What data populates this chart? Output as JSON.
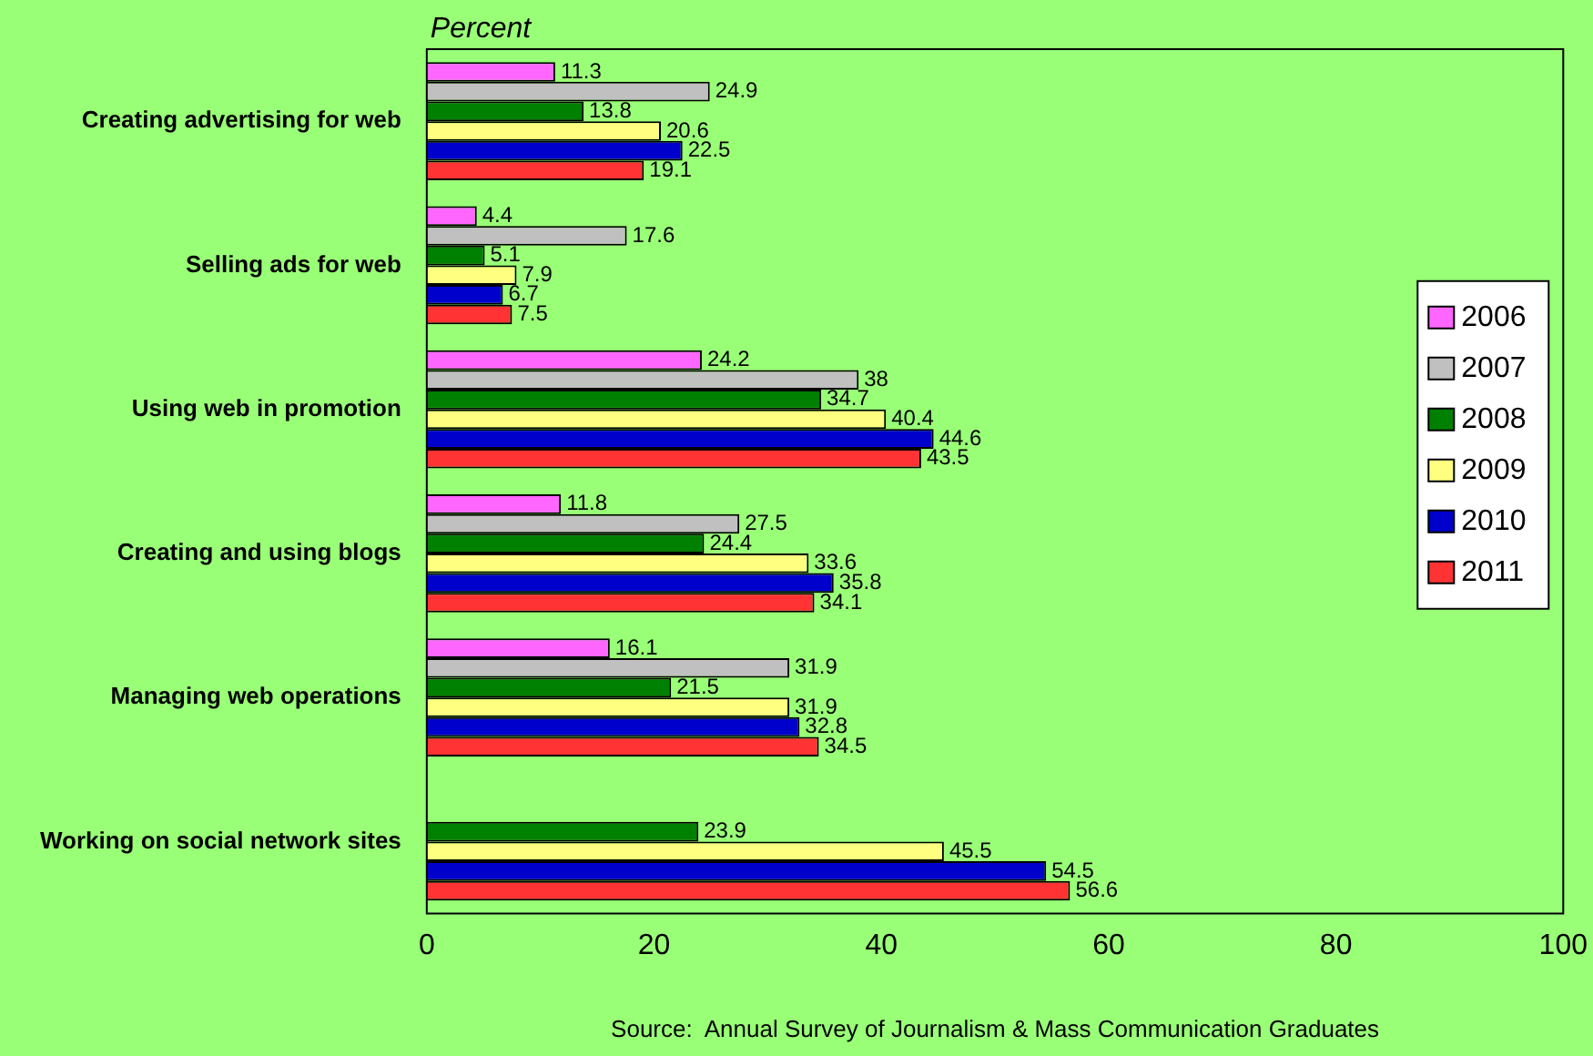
{
  "chart_data": {
    "type": "bar",
    "orientation": "horizontal",
    "xlabel": "Percent",
    "categories": [
      "Creating advertising for web",
      "Selling ads for web",
      "Using web in promotion",
      "Creating and using blogs",
      "Managing web operations",
      "Working on social network sites"
    ],
    "series": [
      {
        "name": "2006",
        "color": "#ff66ff",
        "values": [
          11.3,
          4.4,
          24.2,
          11.8,
          16.1,
          null
        ]
      },
      {
        "name": "2007",
        "color": "#c0c0c0",
        "values": [
          24.9,
          17.6,
          38,
          27.5,
          31.9,
          null
        ]
      },
      {
        "name": "2008",
        "color": "#008000",
        "values": [
          13.8,
          5.1,
          34.7,
          24.4,
          21.5,
          23.9
        ]
      },
      {
        "name": "2009",
        "color": "#ffff80",
        "values": [
          20.6,
          7.9,
          40.4,
          33.6,
          31.9,
          45.5
        ]
      },
      {
        "name": "2010",
        "color": "#0000cc",
        "values": [
          22.5,
          6.7,
          44.6,
          35.8,
          32.8,
          54.5
        ]
      },
      {
        "name": "2011",
        "color": "#ff3333",
        "values": [
          19.1,
          7.5,
          43.5,
          34.1,
          34.5,
          56.6
        ]
      }
    ],
    "xlim": [
      0,
      100
    ],
    "xticks": [
      0,
      20,
      40,
      60,
      80,
      100
    ],
    "grid": false,
    "legend": "right",
    "data_labels": true,
    "annotations": [
      "Source:  Annual Survey of Journalism & Mass Communication Graduates"
    ]
  }
}
